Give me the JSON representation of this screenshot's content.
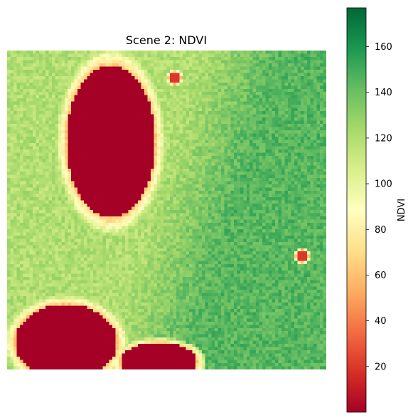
{
  "chart_data": {
    "type": "heatmap",
    "title": "Scene 2: NDVI",
    "axes_visible": false,
    "colormap": "RdYlGn",
    "colorbar": {
      "label": "NDVI",
      "range": [
        0,
        177
      ],
      "ticks": [
        20,
        40,
        60,
        80,
        100,
        120,
        140,
        160
      ],
      "tick_labels": [
        "20",
        "40",
        "60",
        "80",
        "100",
        "120",
        "140",
        "160"
      ]
    },
    "grid_size": [
      100,
      100
    ],
    "background_ndvi": {
      "left_side": 120,
      "right_side": 145
    },
    "features": [
      {
        "kind": "water",
        "ndvi": 0,
        "center": [
          32,
          28
        ],
        "extent": [
          14,
          24
        ]
      },
      {
        "kind": "water",
        "ndvi": 0,
        "center": [
          18,
          91
        ],
        "extent": [
          16,
          12
        ]
      },
      {
        "kind": "water",
        "ndvi": 0,
        "center": [
          47,
          97
        ],
        "extent": [
          12,
          6
        ]
      },
      {
        "kind": "bare",
        "ndvi": 20,
        "center": [
          52,
          8
        ],
        "extent": [
          2,
          2
        ]
      },
      {
        "kind": "bare",
        "ndvi": 20,
        "center": [
          92,
          64
        ],
        "extent": [
          2,
          2
        ]
      }
    ]
  }
}
